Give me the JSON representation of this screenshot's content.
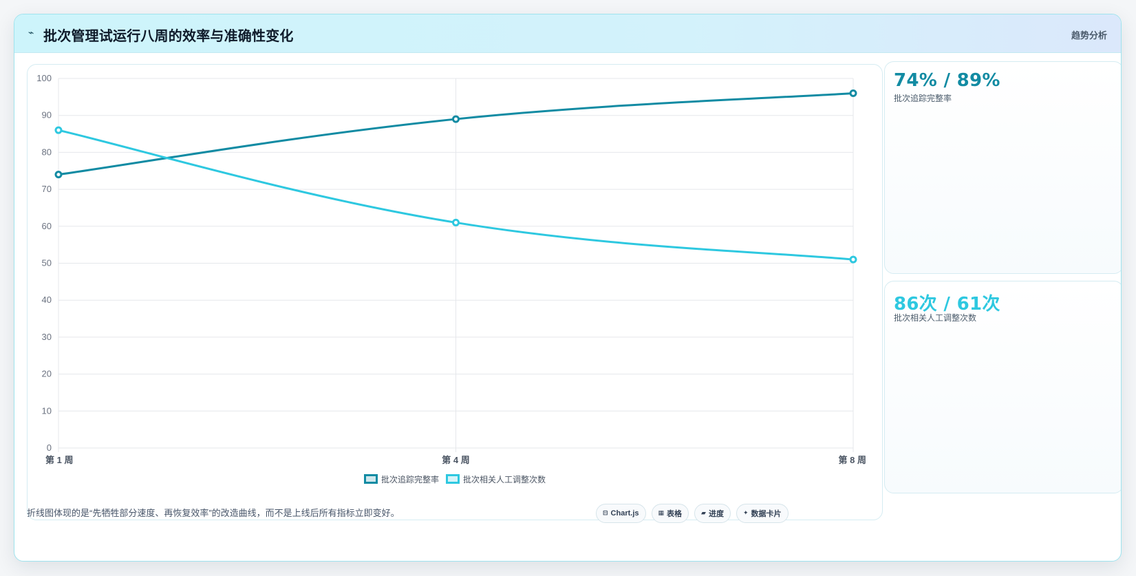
{
  "header": {
    "icon": "line-chart-icon",
    "title": "批次管理试运行八周的效率与准确性变化",
    "tag": "趋势分析"
  },
  "colors": {
    "series1": "#128ba3",
    "series2": "#2ec8e0",
    "grid": "#e5e7eb",
    "border": "#9fe3ee"
  },
  "chart_data": {
    "type": "line",
    "categories": [
      "第 1 周",
      "第 4 周",
      "第 8 周"
    ],
    "series": [
      {
        "name": "批次追踪完整率",
        "values": [
          74,
          89,
          96
        ],
        "color": "#128ba3"
      },
      {
        "name": "批次相关人工调整次数",
        "values": [
          86,
          61,
          51
        ],
        "color": "#2ec8e0"
      }
    ],
    "ylim": [
      0,
      100
    ],
    "yticks": [
      0,
      10,
      20,
      30,
      40,
      50,
      60,
      70,
      80,
      90,
      100
    ],
    "grid": true,
    "legend_position": "bottom",
    "title": "",
    "xlabel": "",
    "ylabel": ""
  },
  "stats": [
    {
      "value": "74% / 89%",
      "label": "批次追踪完整率",
      "color": "#128ba3"
    },
    {
      "value": "86次 / 61次",
      "label": "批次相关人工调整次数",
      "color": "#2ec8e0"
    }
  ],
  "footer": {
    "note": "折线图体现的是“先牺牲部分速度、再恢复效率”的改造曲线，而不是上线后所有指标立即变好。",
    "chips": [
      {
        "icon": "chart-icon",
        "label": "Chart.js"
      },
      {
        "icon": "table-icon",
        "label": "表格"
      },
      {
        "icon": "progress-icon",
        "label": "进度"
      },
      {
        "icon": "sparkle-icon",
        "label": "数据卡片"
      }
    ]
  }
}
